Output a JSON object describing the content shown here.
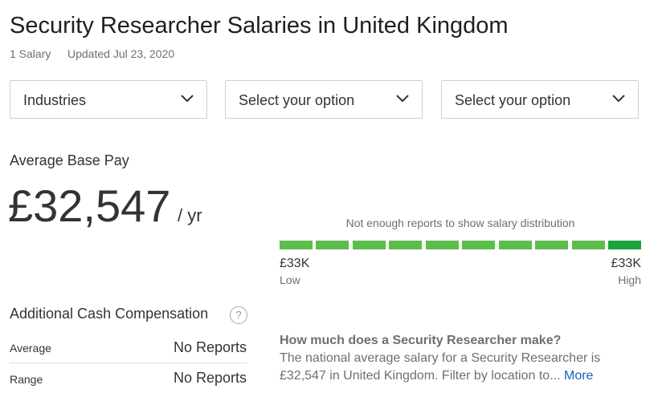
{
  "header": {
    "title": "Security Researcher Salaries in United Kingdom",
    "count": "1 Salary",
    "updated": "Updated Jul 23, 2020"
  },
  "filters": [
    "Industries",
    "Select your option",
    "Select your option"
  ],
  "base_pay": {
    "label": "Average Base Pay",
    "amount": "£32,547",
    "unit": "/ yr"
  },
  "distribution": {
    "note": "Not enough reports to show salary distribution",
    "low_value": "£33K",
    "low_label": "Low",
    "high_value": "£33K",
    "high_label": "High"
  },
  "additional": {
    "title": "Additional Cash Compensation",
    "help": "?",
    "rows": [
      [
        "Average",
        "No Reports"
      ],
      [
        "Range",
        "No Reports"
      ]
    ]
  },
  "faq": {
    "question": "How much does a Security Researcher make?",
    "lines": [
      "The national average salary for a Security Researcher is",
      "£32,547 in United Kingdom. Filter by location to..."
    ],
    "link": "More"
  }
}
